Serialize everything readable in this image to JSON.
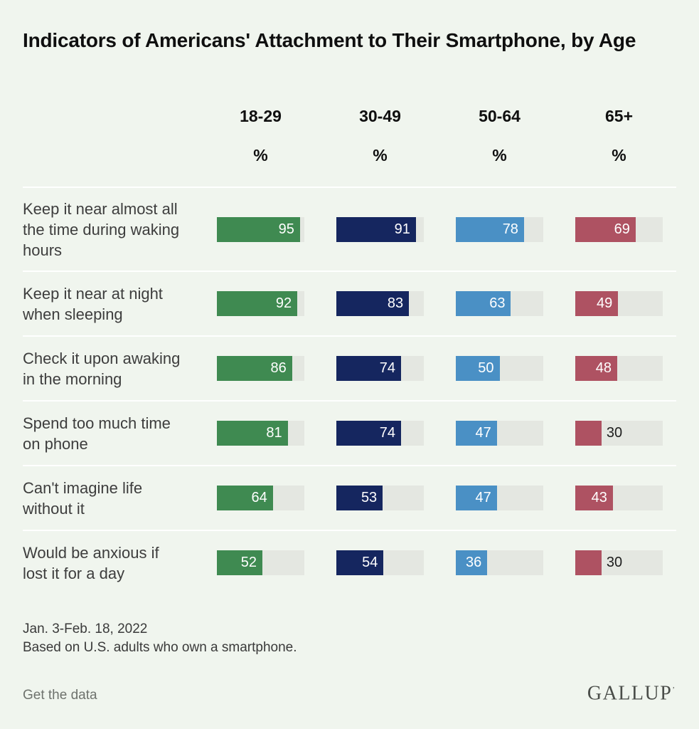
{
  "title": "Indicators of Americans' Attachment to Their Smartphone, by Age",
  "chart_data": {
    "type": "bar",
    "orientation": "horizontal",
    "unit": "%",
    "xlim": [
      0,
      100
    ],
    "grid": false,
    "track_color": "#e4e7e1",
    "value_label_inside_color": "#ffffff",
    "value_label_outside_color": "#1d1d1d",
    "categories": [
      "Keep it near almost all\nthe time during waking\nhours",
      "Keep it near at night\nwhen sleeping",
      "Check it upon awaking\nin the morning",
      "Spend too much time\non phone",
      "Can't imagine life\nwithout it",
      "Would be anxious if\nlost it for a day"
    ],
    "series": [
      {
        "name": "18-29",
        "color": "#3f8a51",
        "values": [
          95,
          92,
          86,
          81,
          64,
          52
        ]
      },
      {
        "name": "30-49",
        "color": "#15265f",
        "values": [
          91,
          83,
          74,
          74,
          53,
          54
        ]
      },
      {
        "name": "50-64",
        "color": "#4a90c5",
        "values": [
          78,
          63,
          50,
          47,
          47,
          36
        ]
      },
      {
        "name": "65+",
        "color": "#ae5262",
        "values": [
          69,
          49,
          48,
          30,
          43,
          30
        ]
      }
    ]
  },
  "footer": {
    "date": "Jan. 3-Feb. 18, 2022",
    "note": "Based on U.S. adults who own a smartphone.",
    "link_label": "Get the data",
    "brand": "GALLUP",
    "brand_mark": "’"
  }
}
